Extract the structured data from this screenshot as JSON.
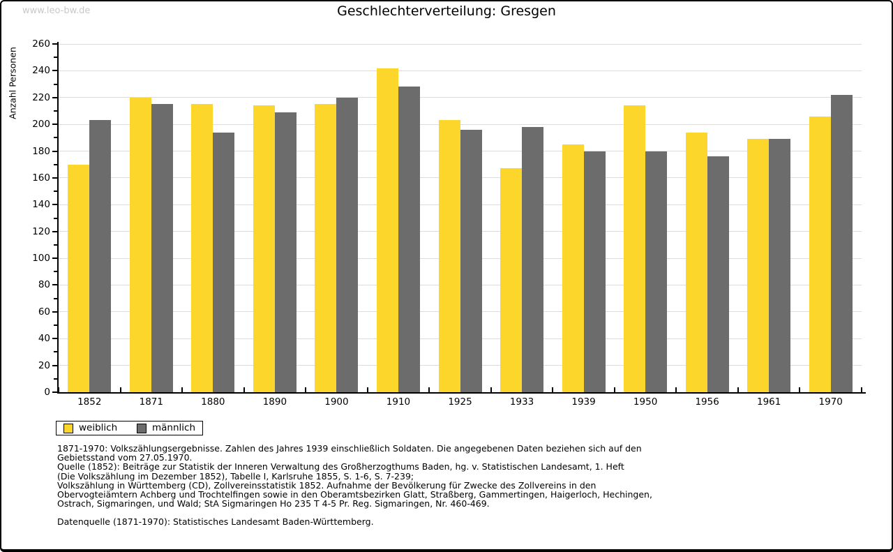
{
  "watermark": "www.leo-bw.de",
  "title": "Geschlechterverteilung: Gresgen",
  "chart_data": {
    "type": "bar",
    "title": "Geschlechterverteilung: Gresgen",
    "xlabel": "",
    "ylabel": "Anzahl Personen",
    "ylim": [
      0,
      260
    ],
    "y_major_step": 20,
    "y_minor_step": 10,
    "grid": true,
    "legend_position": "bottom-left",
    "categories": [
      "1852",
      "1871",
      "1880",
      "1890",
      "1900",
      "1910",
      "1925",
      "1933",
      "1939",
      "1950",
      "1956",
      "1961",
      "1970"
    ],
    "series": [
      {
        "name": "weiblich",
        "color": "#FDD62C",
        "values": [
          170,
          220,
          215,
          214,
          215,
          242,
          203,
          167,
          185,
          214,
          194,
          189,
          206
        ]
      },
      {
        "name": "männlich",
        "color": "#6C6C6C",
        "values": [
          203,
          215,
          194,
          209,
          220,
          228,
          196,
          198,
          180,
          180,
          176,
          189,
          222
        ]
      }
    ]
  },
  "footer": {
    "lines": [
      "1871-1970: Volkszählungsergebnisse. Zahlen des Jahres 1939 einschließlich Soldaten. Die angegebenen Daten beziehen sich auf den",
      "Gebietsstand vom 27.05.1970.",
      "Quelle (1852): Beiträge zur Statistik der Inneren Verwaltung des Großherzogthums Baden, hg. v. Statistischen Landesamt, 1. Heft",
      "(Die Volkszählung im Dezember 1852), Tabelle I, Karlsruhe 1855, S. 1-6, S. 7-239;",
      "Volkszählung in Württemberg (CD), Zollvereinsstatistik 1852. Aufnahme der Bevölkerung für Zwecke des Zollvereins in den",
      "Obervogteiämtern Achberg und Trochtelfingen sowie in den Oberamtsbezirken Glatt, Straßberg, Gammertingen, Haigerloch, Hechingen,",
      "Ostrach, Sigmaringen, und Wald; StA Sigmaringen Ho 235 T 4-5 Pr. Reg. Sigmaringen, Nr. 460-469."
    ],
    "datasource": "Datenquelle (1871-1970): Statistisches Landesamt Baden-Württemberg."
  },
  "colors": {
    "female_bar": "#FDD62C",
    "male_bar": "#6C6C6C",
    "gridline": "#DCDCDC",
    "axis": "#000000",
    "watermark": "#C8C8C8",
    "background": "#FFFFFF"
  }
}
